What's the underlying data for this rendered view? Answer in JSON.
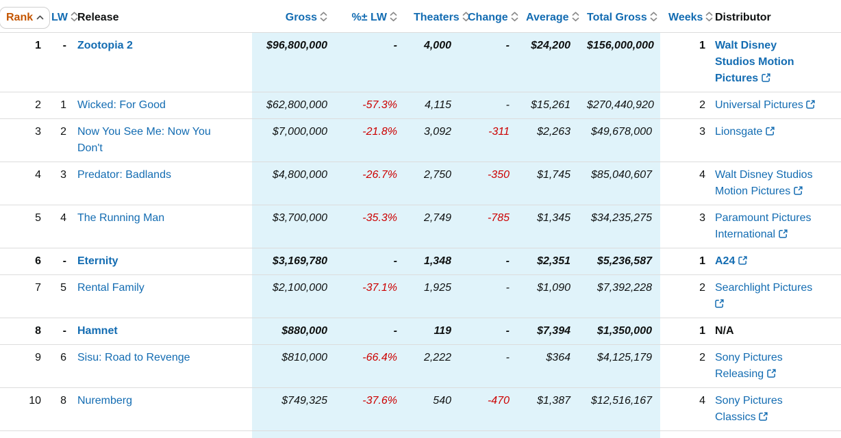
{
  "colors": {
    "link_blue": "#136cb2",
    "sorted_header_orange": "#c45500",
    "negative_red": "#cc0000",
    "highlight_band_blue": "#e0f3fa",
    "row_border": "#dcdcdc"
  },
  "icons": {
    "sort_ascending": "chevron-up",
    "sortable": "chevron-up-down",
    "external_link": "box-with-arrow-up-right"
  },
  "table": {
    "columns": [
      {
        "key": "rank",
        "label": "Rank",
        "sortable": true,
        "sorted": "ascending"
      },
      {
        "key": "lw",
        "label": "LW",
        "sortable": true,
        "sorted": null
      },
      {
        "key": "release",
        "label": "Release",
        "sortable": false,
        "sorted": null
      },
      {
        "key": "gross",
        "label": "Gross",
        "sortable": true,
        "sorted": null
      },
      {
        "key": "pct_lw",
        "label": "%± LW",
        "sortable": true,
        "sorted": null
      },
      {
        "key": "theaters",
        "label": "Theaters",
        "sortable": true,
        "sorted": null
      },
      {
        "key": "change",
        "label": "Change",
        "sortable": true,
        "sorted": null
      },
      {
        "key": "average",
        "label": "Average",
        "sortable": true,
        "sorted": null
      },
      {
        "key": "total_gross",
        "label": "Total Gross",
        "sortable": true,
        "sorted": null
      },
      {
        "key": "weeks",
        "label": "Weeks",
        "sortable": true,
        "sorted": null
      },
      {
        "key": "distributor",
        "label": "Distributor",
        "sortable": false,
        "sorted": null
      }
    ],
    "rows": [
      {
        "rank": "1",
        "lw": "-",
        "release": "Zootopia 2",
        "gross": "$96,800,000",
        "pct_lw": "-",
        "theaters": "4,000",
        "change": "-",
        "average": "$24,200",
        "total_gross": "$156,000,000",
        "weeks": "1",
        "distributor": "Walt Disney Studios Motion Pictures",
        "distributor_link": true,
        "new_this_week": true
      },
      {
        "rank": "2",
        "lw": "1",
        "release": "Wicked: For Good",
        "gross": "$62,800,000",
        "pct_lw": "-57.3%",
        "theaters": "4,115",
        "change": "-",
        "average": "$15,261",
        "total_gross": "$270,440,920",
        "weeks": "2",
        "distributor": "Universal Pictures",
        "distributor_link": true,
        "new_this_week": false
      },
      {
        "rank": "3",
        "lw": "2",
        "release": "Now You See Me: Now You Don't",
        "gross": "$7,000,000",
        "pct_lw": "-21.8%",
        "theaters": "3,092",
        "change": "-311",
        "average": "$2,263",
        "total_gross": "$49,678,000",
        "weeks": "3",
        "distributor": "Lionsgate",
        "distributor_link": true,
        "new_this_week": false
      },
      {
        "rank": "4",
        "lw": "3",
        "release": "Predator: Badlands",
        "gross": "$4,800,000",
        "pct_lw": "-26.7%",
        "theaters": "2,750",
        "change": "-350",
        "average": "$1,745",
        "total_gross": "$85,040,607",
        "weeks": "4",
        "distributor": "Walt Disney Studios Motion Pictures",
        "distributor_link": true,
        "new_this_week": false
      },
      {
        "rank": "5",
        "lw": "4",
        "release": "The Running Man",
        "gross": "$3,700,000",
        "pct_lw": "-35.3%",
        "theaters": "2,749",
        "change": "-785",
        "average": "$1,345",
        "total_gross": "$34,235,275",
        "weeks": "3",
        "distributor": "Paramount Pictures International",
        "distributor_link": true,
        "new_this_week": false
      },
      {
        "rank": "6",
        "lw": "-",
        "release": "Eternity",
        "gross": "$3,169,780",
        "pct_lw": "-",
        "theaters": "1,348",
        "change": "-",
        "average": "$2,351",
        "total_gross": "$5,236,587",
        "weeks": "1",
        "distributor": "A24",
        "distributor_link": true,
        "new_this_week": true
      },
      {
        "rank": "7",
        "lw": "5",
        "release": "Rental Family",
        "gross": "$2,100,000",
        "pct_lw": "-37.1%",
        "theaters": "1,925",
        "change": "-",
        "average": "$1,090",
        "total_gross": "$7,392,228",
        "weeks": "2",
        "distributor": "Searchlight Pictures",
        "distributor_link": true,
        "new_this_week": false
      },
      {
        "rank": "8",
        "lw": "-",
        "release": "Hamnet",
        "gross": "$880,000",
        "pct_lw": "-",
        "theaters": "119",
        "change": "-",
        "average": "$7,394",
        "total_gross": "$1,350,000",
        "weeks": "1",
        "distributor": "N/A",
        "distributor_link": false,
        "new_this_week": true
      },
      {
        "rank": "9",
        "lw": "6",
        "release": "Sisu: Road to Revenge",
        "gross": "$810,000",
        "pct_lw": "-66.4%",
        "theaters": "2,222",
        "change": "-",
        "average": "$364",
        "total_gross": "$4,125,179",
        "weeks": "2",
        "distributor": "Sony Pictures Releasing",
        "distributor_link": true,
        "new_this_week": false
      },
      {
        "rank": "10",
        "lw": "8",
        "release": "Nuremberg",
        "gross": "$749,325",
        "pct_lw": "-37.6%",
        "theaters": "540",
        "change": "-470",
        "average": "$1,387",
        "total_gross": "$12,516,167",
        "weeks": "4",
        "distributor": "Sony Pictures Classics",
        "distributor_link": true,
        "new_this_week": false
      }
    ]
  }
}
